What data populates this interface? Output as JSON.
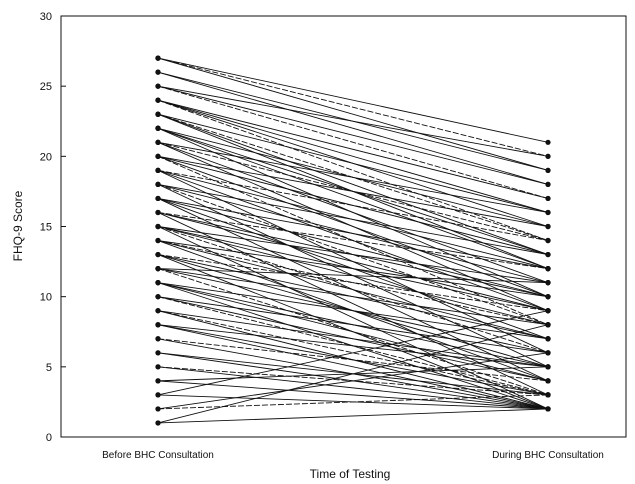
{
  "chart_data": {
    "type": "line",
    "title": "",
    "xlabel": "Time of Testing",
    "ylabel": "FHQ-9 Score",
    "categories": [
      "Before BHC Consultation",
      "During BHC Consultation"
    ],
    "ylim": [
      0,
      30
    ],
    "yticks": [
      0,
      5,
      10,
      15,
      20,
      25,
      30
    ],
    "grid": false,
    "legend": "none",
    "series": [
      {
        "values": [
          27,
          21
        ]
      },
      {
        "values": [
          27,
          20
        ]
      },
      {
        "values": [
          27,
          19
        ]
      },
      {
        "values": [
          26,
          19
        ]
      },
      {
        "values": [
          26,
          18
        ]
      },
      {
        "values": [
          25,
          18
        ]
      },
      {
        "values": [
          25,
          17
        ]
      },
      {
        "values": [
          24,
          17
        ]
      },
      {
        "values": [
          24,
          16
        ]
      },
      {
        "values": [
          24,
          15
        ]
      },
      {
        "values": [
          23,
          16
        ]
      },
      {
        "values": [
          23,
          14
        ]
      },
      {
        "values": [
          23,
          13
        ]
      },
      {
        "values": [
          22,
          15
        ]
      },
      {
        "values": [
          22,
          12
        ]
      },
      {
        "values": [
          22,
          10
        ]
      },
      {
        "values": [
          21,
          14
        ]
      },
      {
        "values": [
          21,
          11
        ]
      },
      {
        "values": [
          21,
          9
        ]
      },
      {
        "values": [
          20,
          13
        ]
      },
      {
        "values": [
          20,
          10
        ]
      },
      {
        "values": [
          20,
          8
        ]
      },
      {
        "values": [
          19,
          12
        ]
      },
      {
        "values": [
          19,
          9
        ]
      },
      {
        "values": [
          19,
          6
        ]
      },
      {
        "values": [
          18,
          11
        ]
      },
      {
        "values": [
          18,
          8
        ]
      },
      {
        "values": [
          18,
          5
        ]
      },
      {
        "values": [
          17,
          10
        ]
      },
      {
        "values": [
          17,
          7
        ]
      },
      {
        "values": [
          17,
          4
        ]
      },
      {
        "values": [
          16,
          12
        ]
      },
      {
        "values": [
          16,
          9
        ]
      },
      {
        "values": [
          16,
          3
        ]
      },
      {
        "values": [
          15,
          11
        ]
      },
      {
        "values": [
          15,
          8
        ]
      },
      {
        "values": [
          15,
          6
        ]
      },
      {
        "values": [
          15,
          2
        ]
      },
      {
        "values": [
          14,
          10
        ]
      },
      {
        "values": [
          14,
          7
        ]
      },
      {
        "values": [
          14,
          4
        ]
      },
      {
        "values": [
          13,
          9
        ]
      },
      {
        "values": [
          13,
          5
        ]
      },
      {
        "values": [
          13,
          2
        ]
      },
      {
        "values": [
          12,
          8
        ]
      },
      {
        "values": [
          12,
          6
        ]
      },
      {
        "values": [
          12,
          3
        ]
      },
      {
        "values": [
          11,
          7
        ]
      },
      {
        "values": [
          11,
          4
        ]
      },
      {
        "values": [
          11,
          2
        ]
      },
      {
        "values": [
          10,
          6
        ]
      },
      {
        "values": [
          10,
          3
        ]
      },
      {
        "values": [
          9,
          5
        ]
      },
      {
        "values": [
          9,
          2
        ]
      },
      {
        "values": [
          8,
          5
        ]
      },
      {
        "values": [
          8,
          3
        ]
      },
      {
        "values": [
          7,
          4
        ]
      },
      {
        "values": [
          7,
          2
        ]
      },
      {
        "values": [
          6,
          3
        ]
      },
      {
        "values": [
          6,
          2
        ]
      },
      {
        "values": [
          5,
          2
        ]
      },
      {
        "values": [
          5,
          3
        ]
      },
      {
        "values": [
          4,
          2
        ]
      },
      {
        "values": [
          4,
          5
        ]
      },
      {
        "values": [
          3,
          2
        ]
      },
      {
        "values": [
          3,
          9
        ]
      },
      {
        "values": [
          2,
          3
        ]
      },
      {
        "values": [
          2,
          6
        ]
      },
      {
        "values": [
          1,
          2
        ]
      },
      {
        "values": [
          1,
          8
        ]
      },
      {
        "values": [
          25,
          20
        ]
      },
      {
        "values": [
          24,
          14
        ]
      },
      {
        "values": [
          23,
          12
        ]
      },
      {
        "values": [
          22,
          13
        ]
      },
      {
        "values": [
          21,
          16
        ]
      },
      {
        "values": [
          20,
          15
        ]
      },
      {
        "values": [
          19,
          14
        ]
      },
      {
        "values": [
          18,
          13
        ]
      },
      {
        "values": [
          17,
          12
        ]
      },
      {
        "values": [
          16,
          10
        ]
      },
      {
        "values": [
          15,
          9
        ]
      },
      {
        "values": [
          14,
          8
        ]
      },
      {
        "values": [
          13,
          7
        ]
      },
      {
        "values": [
          12,
          11
        ]
      },
      {
        "values": [
          11,
          5
        ]
      },
      {
        "values": [
          10,
          4
        ]
      },
      {
        "values": [
          9,
          3
        ]
      },
      {
        "values": [
          8,
          2
        ]
      }
    ]
  }
}
